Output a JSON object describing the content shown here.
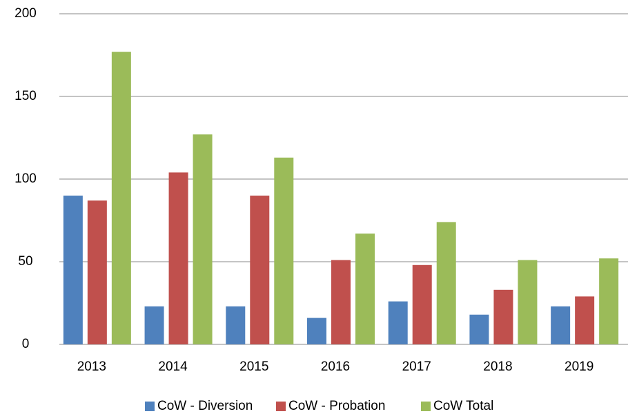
{
  "chart_data": {
    "type": "bar",
    "categories": [
      "2013",
      "2014",
      "2015",
      "2016",
      "2017",
      "2018",
      "2019"
    ],
    "series": [
      {
        "name": "CoW - Diversion",
        "color": "#4f81bd",
        "values": [
          90,
          23,
          23,
          16,
          26,
          18,
          23
        ]
      },
      {
        "name": "CoW - Probation",
        "color": "#c0504d",
        "values": [
          87,
          104,
          90,
          51,
          48,
          33,
          29
        ]
      },
      {
        "name": "CoW Total",
        "color": "#9bbb59",
        "values": [
          177,
          127,
          113,
          67,
          74,
          51,
          52
        ]
      }
    ],
    "ylim": [
      0,
      200
    ],
    "yticks": [
      0,
      50,
      100,
      150,
      200
    ],
    "grid": true,
    "legend": "bottom"
  }
}
